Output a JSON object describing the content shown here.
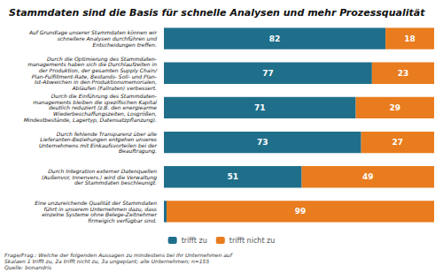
{
  "chart_data": {
    "type": "bar",
    "orientation": "horizontal",
    "stacked": true,
    "title": "Stammdaten sind die Basis für schnelle Analysen und mehr Prozessqualität",
    "categories": [
      "Auf Grundlage unserer Stammdaten können wir\nschnellere Analysen durchführen und\nEntscheidungen treffen.",
      "Durch die Optimierung des Stammdaten-\nmanagements haben sich die Durchlaufzeiten in\nder Produktion, der gesamten Supply Chain/\nPlan-Fulfillment-Rate, Bestands- Soll- und Plan-\nIst-Abweichen in den Produktionsmemorialen,\nAbläufen (Fallraten) verbessert.",
      "Durch die Einführung des Stammdaten-\nmanagements bleiben die spezifischen Kapital\ndeutlich reduziert (z.B. den energiearme\nWiederbeschaffungszeiten, Losgrößen,\nMindestbestände, Lagertyp, Datensatzpflanzung).",
      "Durch fehlende Transparenz über alle\nLieferanten-Beziehungen entgehen unseres\nUnternehmens mit Einkaufsvorteilen bei der\nBeauftragung.",
      "Durch Integration externer Datenquellen\n(Außenvor, Innenvers.) wird die Verwaltung\nder Stammdaten beschleunigt.",
      "Eine unzureichende Qualität der Stammdaten\nführt in unserem Unternehmen dazu, dass\neinzelne Systeme ohne Belege-Zeitnehmer\nfirmeigich verfügbar sind."
    ],
    "series": [
      {
        "name": "trifft zu",
        "color": "#1f6f8b",
        "values": [
          82,
          77,
          71,
          73,
          51,
          1
        ],
        "value_labels": [
          "82",
          "77",
          "71",
          "73",
          "51",
          null
        ]
      },
      {
        "name": "trifft nicht zu",
        "color": "#e87c1e",
        "values": [
          18,
          23,
          29,
          27,
          49,
          99
        ],
        "value_labels": [
          "18",
          "23",
          "29",
          "27",
          "49",
          "99"
        ]
      }
    ],
    "xlim": [
      0,
      100
    ],
    "grid": false,
    "legend": "bottom",
    "data_labels": true,
    "tick_labels": "y",
    "annotations": [
      "Frage/Frag.: Welche der folgenden Aussagen zu mindestens bei Ihr Unternehmen auf\nSkalaen 1 trifft zu, 2a trifft nicht zu, 3a ungeplant; alle Unternehmen; n=155\nQuelle: bonandris"
    ]
  }
}
